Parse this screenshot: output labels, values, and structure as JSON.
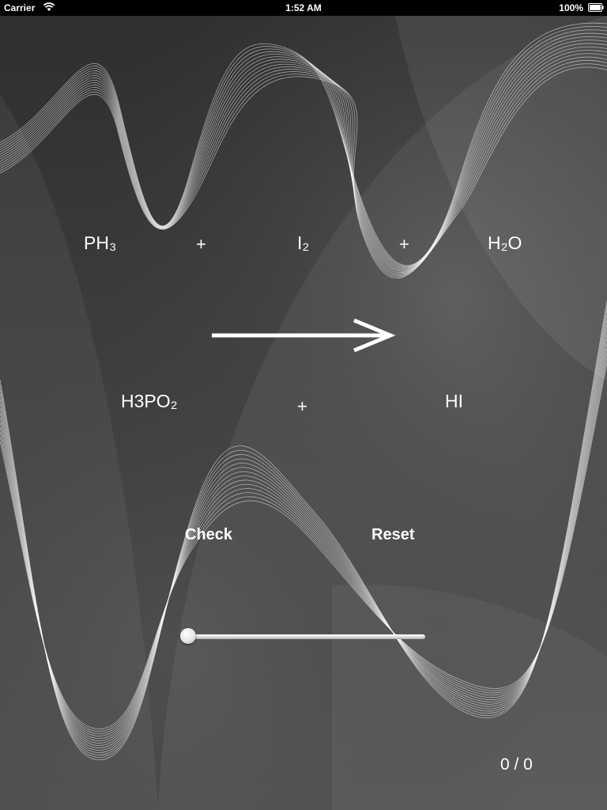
{
  "status_bar": {
    "carrier": "Carrier",
    "time": "1:52 AM",
    "battery": "100%"
  },
  "equation": {
    "reactants": [
      "PH₃",
      "I₂",
      "H₂O"
    ],
    "products": [
      "H3PO₂",
      "HI"
    ],
    "plus": "+"
  },
  "buttons": {
    "check": "Check",
    "reset": "Reset"
  },
  "slider": {
    "value": 0
  },
  "score": "0 / 0",
  "icons": {
    "wifi": "wifi-icon",
    "battery": "battery-icon",
    "arrow": "reaction-arrow-icon"
  }
}
